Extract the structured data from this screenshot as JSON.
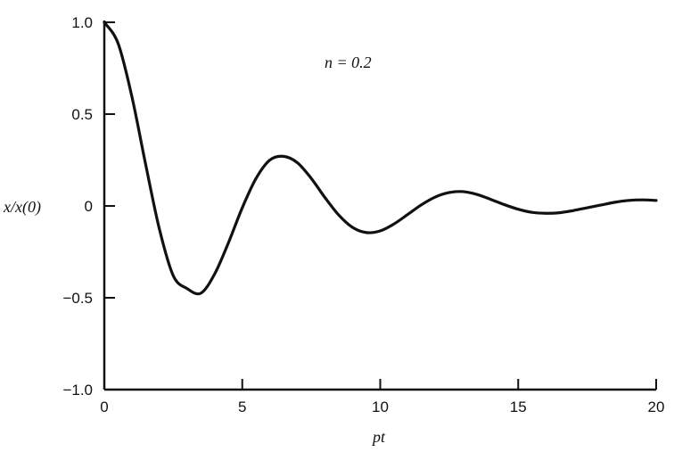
{
  "chart_data": {
    "type": "line",
    "title": "",
    "annotation": "n = 0.2",
    "xlabel": "pt",
    "ylabel": "x/x(0)",
    "xlim": [
      0,
      20
    ],
    "ylim": [
      -1.0,
      1.0
    ],
    "x_ticks": [
      0,
      5,
      10,
      15,
      20
    ],
    "x_tick_labels": [
      "0",
      "5",
      "10",
      "15",
      "20"
    ],
    "y_ticks": [
      1.0,
      0.5,
      0,
      -0.5,
      -1.0
    ],
    "y_tick_labels": [
      "1.0",
      "0.5",
      "0",
      "−0.5",
      "−1.0"
    ],
    "grid": false,
    "series": [
      {
        "color": "#111111",
        "x": [
          0,
          0.5,
          1,
          1.5,
          2,
          2.5,
          3,
          3.5,
          4,
          4.5,
          5,
          5.5,
          6,
          6.5,
          7,
          7.5,
          8,
          8.5,
          9,
          9.5,
          10,
          10.5,
          11,
          11.5,
          12,
          12.5,
          13,
          13.5,
          14,
          14.5,
          15,
          15.5,
          16,
          16.5,
          17,
          17.5,
          18,
          18.5,
          19,
          19.5,
          20
        ],
        "y": [
          1.0,
          0.885,
          0.595,
          0.225,
          -0.128,
          -0.38,
          -0.45,
          -0.475,
          -0.37,
          -0.2,
          -0.01,
          0.15,
          0.25,
          0.27,
          0.235,
          0.15,
          0.045,
          -0.05,
          -0.117,
          -0.145,
          -0.136,
          -0.098,
          -0.046,
          0.007,
          0.049,
          0.073,
          0.078,
          0.063,
          0.036,
          0.007,
          -0.018,
          -0.035,
          -0.04,
          -0.037,
          -0.025,
          -0.01,
          0.005,
          0.02,
          0.03,
          0.033,
          0.03
        ]
      }
    ]
  }
}
